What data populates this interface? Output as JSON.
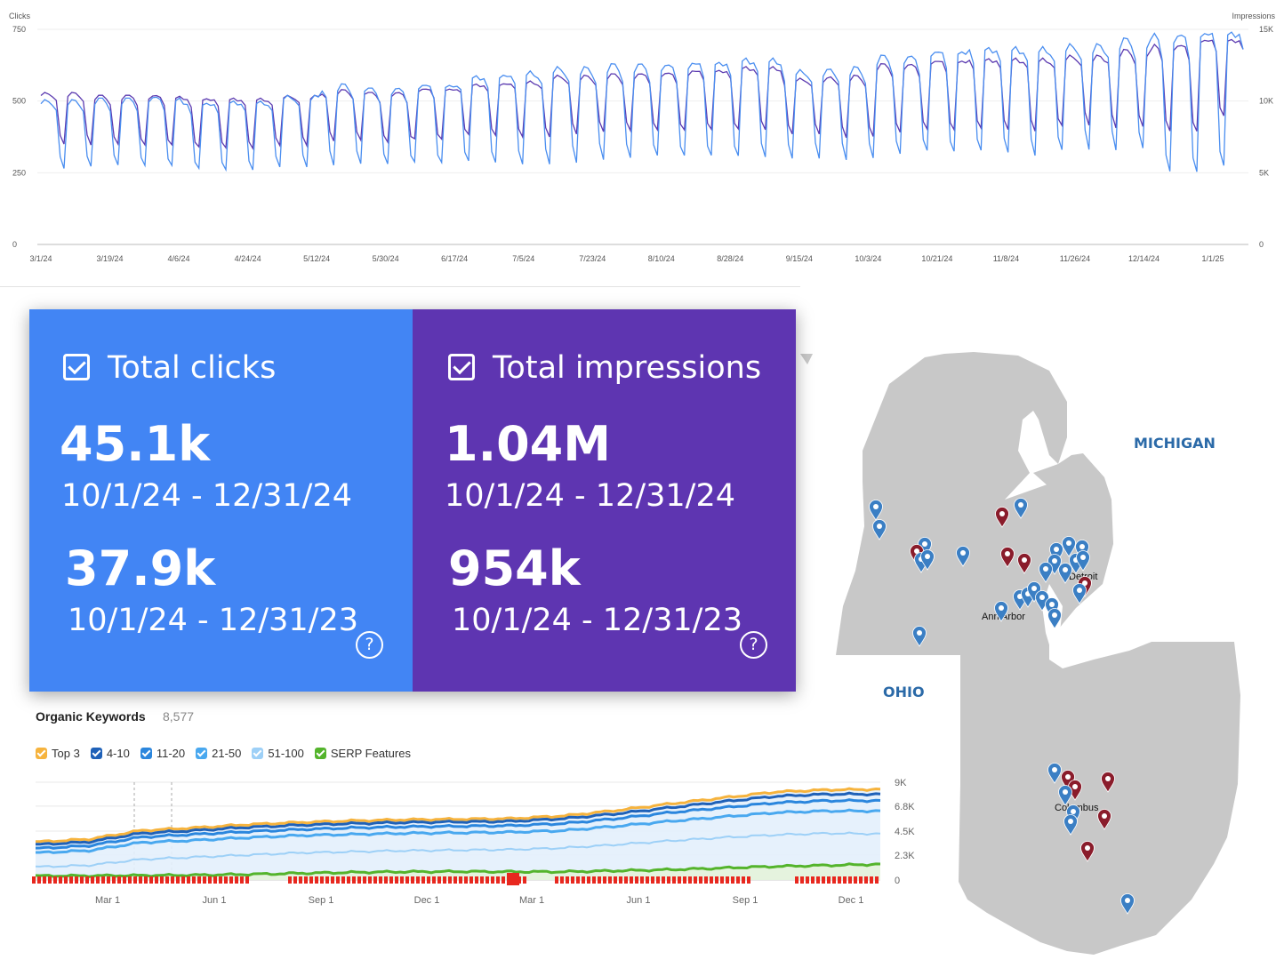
{
  "top_chart": {
    "left_axis_title": "Clicks",
    "right_axis_title": "Impressions",
    "left_ticks": [
      "750",
      "500",
      "250",
      "0"
    ],
    "right_ticks": [
      "15K",
      "10K",
      "5K",
      "0"
    ],
    "x_ticks": [
      "3/1/24",
      "3/19/24",
      "4/6/24",
      "4/24/24",
      "5/12/24",
      "5/30/24",
      "6/17/24",
      "7/5/24",
      "7/23/24",
      "8/10/24",
      "8/28/24",
      "9/15/24",
      "10/3/24",
      "10/21/24",
      "11/8/24",
      "11/26/24",
      "12/14/24",
      "1/1/25"
    ],
    "colors": {
      "clicks": "#4a8ef0",
      "impressions": "#5b3ab0"
    }
  },
  "chart_data": [
    {
      "type": "line",
      "x_start": "3/1/24",
      "x_end": "1/7/25",
      "x_unit": "week",
      "ylim_left": [
        0,
        750
      ],
      "ylim_right": [
        0,
        15000
      ],
      "grid": true,
      "series": [
        {
          "name": "Clicks",
          "axis": "left",
          "weekday_high": [
            505,
            510,
            515,
            495,
            500,
            520,
            560,
            545,
            560,
            590,
            605,
            620,
            630,
            630,
            640,
            650,
            610,
            620,
            660,
            680,
            690,
            690,
            700,
            720,
            740,
            750
          ],
          "weekend_low": [
            265,
            270,
            265,
            258,
            260,
            270,
            275,
            270,
            275,
            285,
            280,
            285,
            290,
            295,
            300,
            305,
            300,
            292,
            300,
            310,
            320,
            310,
            330,
            320,
            230,
            260
          ]
        },
        {
          "name": "Impressions",
          "axis": "right",
          "weekday_high": [
            10600,
            10400,
            10400,
            10200,
            10200,
            10400,
            10800,
            10600,
            10900,
            11200,
            11400,
            11800,
            11900,
            12000,
            12200,
            12400,
            11600,
            11800,
            12600,
            12900,
            13000,
            13000,
            13200,
            13600,
            14000,
            14400
          ],
          "weekend_low": [
            7000,
            6900,
            6800,
            6700,
            6700,
            6900,
            7200,
            7000,
            7200,
            7600,
            7500,
            7700,
            7800,
            7800,
            7900,
            8000,
            7700,
            7400,
            7600,
            7800,
            8000,
            7900,
            8300,
            8000,
            7600,
            8800
          ]
        }
      ]
    },
    {
      "type": "area",
      "title": "Organic Keywords",
      "x_ticks": [
        "Mar 1",
        "Jun 1",
        "Sep 1",
        "Dec 1",
        "Mar 1",
        "Jun 1",
        "Sep 1",
        "Dec 1"
      ],
      "y_ticks": [
        "9K",
        "6.8K",
        "4.5K",
        "2.3K",
        "0"
      ],
      "ylim": [
        0,
        9000
      ],
      "series": [
        {
          "name": "Top 3",
          "values": [
            3500,
            3750,
            4550,
            4800,
            5100,
            5300,
            5450,
            5550,
            5600,
            5650,
            5900,
            6400,
            7000,
            7550,
            8100,
            8300,
            8350
          ]
        },
        {
          "name": "4-10",
          "values": [
            3250,
            3500,
            4300,
            4550,
            4850,
            5050,
            5200,
            5300,
            5350,
            5400,
            5650,
            6100,
            6650,
            7200,
            7700,
            7900,
            7900
          ]
        },
        {
          "name": "11-20",
          "values": [
            2900,
            3150,
            3950,
            4200,
            4450,
            4650,
            4800,
            4900,
            4950,
            5000,
            5200,
            5650,
            6200,
            6650,
            7100,
            7300,
            7300
          ]
        },
        {
          "name": "21-50",
          "values": [
            2500,
            2700,
            3450,
            3650,
            3900,
            4100,
            4200,
            4300,
            4350,
            4400,
            4550,
            4950,
            5400,
            5800,
            6200,
            6350,
            6350
          ]
        },
        {
          "name": "51-100",
          "values": [
            1200,
            1350,
            1900,
            2100,
            2300,
            2500,
            2600,
            2700,
            2750,
            2800,
            2950,
            3250,
            3600,
            3900,
            4150,
            4300,
            4250
          ]
        },
        {
          "name": "SERP Features",
          "values": [
            380,
            390,
            420,
            450,
            520,
            620,
            700,
            760,
            780,
            760,
            760,
            850,
            950,
            1100,
            1250,
            1350,
            1450
          ]
        }
      ]
    }
  ],
  "stats": {
    "clicks": {
      "title": "Total clicks",
      "value_current": "45.1k",
      "range_current": "10/1/24 - 12/31/24",
      "value_previous": "37.9k",
      "range_previous": "10/1/24 - 12/31/23",
      "help": "?",
      "color": "#4285f4"
    },
    "impressions": {
      "title": "Total impressions",
      "value_current": "1.04M",
      "range_current": "10/1/24 - 12/31/24",
      "value_previous": "954k",
      "range_previous": "10/1/24 - 12/31/23",
      "help": "?",
      "color": "#5e35b1"
    }
  },
  "keywords": {
    "title": "Organic Keywords",
    "count": "8,577",
    "legend": [
      {
        "label": "Top 3",
        "color": "#f6b33d"
      },
      {
        "label": "4-10",
        "color": "#1f61b8"
      },
      {
        "label": "11-20",
        "color": "#2b86dd"
      },
      {
        "label": "21-50",
        "color": "#49a8ef"
      },
      {
        "label": "51-100",
        "color": "#9dd0f7"
      },
      {
        "label": "SERP Features",
        "color": "#54b42c"
      }
    ]
  },
  "map": {
    "state_labels": {
      "michigan": "MICHIGAN",
      "ohio": "OHIO"
    },
    "cities": {
      "detroit": "Detroit",
      "ann_arbor": "Ann Arbor",
      "columbus": "Columbus"
    },
    "pin_colors": {
      "blue": "#3b7fc4",
      "red": "#8a1c2b"
    }
  }
}
